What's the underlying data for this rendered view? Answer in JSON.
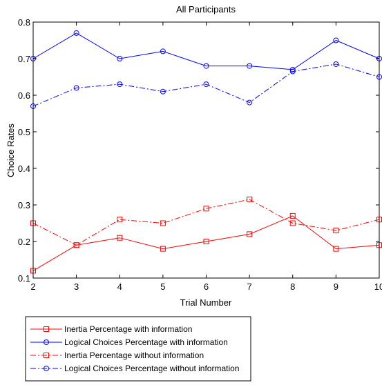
{
  "chart_data": {
    "type": "line",
    "title": "All Participants",
    "xlabel": "Trial Number",
    "ylabel": "Choice Rates",
    "xlim": [
      2,
      10
    ],
    "ylim": [
      0.1,
      0.8
    ],
    "x": [
      2,
      3,
      4,
      5,
      6,
      7,
      8,
      9,
      10
    ],
    "xticks": [
      "2",
      "3",
      "4",
      "5",
      "6",
      "7",
      "8",
      "9",
      "10"
    ],
    "yticks": [
      "0.1",
      "0.2",
      "0.3",
      "0.4",
      "0.5",
      "0.6",
      "0.7",
      "0.8"
    ],
    "grid": false,
    "legend_position": "bottom-left",
    "series": [
      {
        "name": "Inertia Percentage with information",
        "values": [
          0.12,
          0.19,
          0.21,
          0.18,
          0.2,
          0.22,
          0.27,
          0.18,
          0.19
        ],
        "color": "#ff0000",
        "marker": "square",
        "line_style": "solid"
      },
      {
        "name": "Logical Choices Percentage with information",
        "values": [
          0.7,
          0.77,
          0.7,
          0.72,
          0.68,
          0.68,
          0.67,
          0.75,
          0.7
        ],
        "color": "#0000ff",
        "marker": "circle",
        "line_style": "solid"
      },
      {
        "name": "Inertia Percentage without information",
        "values": [
          0.25,
          0.19,
          0.26,
          0.25,
          0.29,
          0.315,
          0.25,
          0.23,
          0.26
        ],
        "color": "#ff0000",
        "marker": "square",
        "line_style": "dashdot"
      },
      {
        "name": "Logical Choices Percentage without information",
        "values": [
          0.57,
          0.62,
          0.63,
          0.61,
          0.63,
          0.58,
          0.665,
          0.685,
          0.65
        ],
        "color": "#0000ff",
        "marker": "circle",
        "line_style": "dashdot"
      }
    ]
  }
}
